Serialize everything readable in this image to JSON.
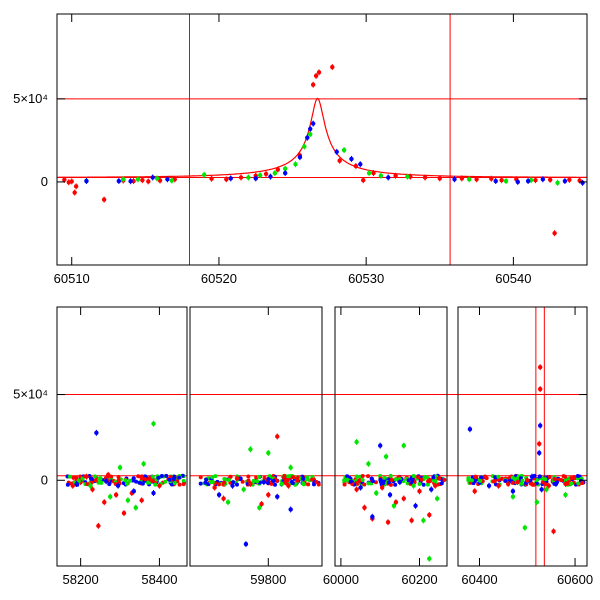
{
  "colors": {
    "red": "#ff0000",
    "green": "#00e600",
    "blue": "#0000ff",
    "axis": "#000000"
  },
  "chart_data": [
    {
      "type": "scatter",
      "title": "",
      "xlabel": "",
      "ylabel": "",
      "xlim": [
        60509,
        60545
      ],
      "ylim": [
        -47000,
        95000
      ],
      "xticks": [
        {
          "value": 60510,
          "label": "60510"
        },
        {
          "value": 60520,
          "label": "60520"
        },
        {
          "value": 60530,
          "label": "60530"
        },
        {
          "value": 60540,
          "label": "60540"
        }
      ],
      "yticks": [
        {
          "value": 0,
          "label": "0"
        },
        {
          "value": 47000,
          "label": "5×10⁴"
        }
      ],
      "hlines": [
        47000,
        2500
      ],
      "vlines": [
        60518,
        60535.7
      ],
      "model": {
        "t0": 60526.7,
        "u0": 0.055,
        "tE": 8.5,
        "base": 2500,
        "fs": 2600,
        "color": "red"
      },
      "series": [
        {
          "color": "red",
          "points": [
            [
              60509.5,
              1200
            ],
            [
              60509.8,
              -200
            ],
            [
              60510.0,
              300
            ],
            [
              60510.2,
              -6000
            ],
            [
              60510.3,
              -2500
            ],
            [
              60512.2,
              -10000
            ],
            [
              60513.5,
              800
            ],
            [
              60514.2,
              500
            ],
            [
              60514.8,
              1000
            ],
            [
              60515.2,
              300
            ],
            [
              60516.0,
              800
            ],
            [
              60517.0,
              1500
            ],
            [
              60519.5,
              1800
            ],
            [
              60520.5,
              1500
            ],
            [
              60521.5,
              2500
            ],
            [
              60522.5,
              3500
            ],
            [
              60523.2,
              4500
            ],
            [
              60524.0,
              7000
            ],
            [
              60525.5,
              15000
            ],
            [
              60526.4,
              55000
            ],
            [
              60526.6,
              60000
            ],
            [
              60526.8,
              62000
            ],
            [
              60527.7,
              65000
            ],
            [
              60528.2,
              12000
            ],
            [
              60529.3,
              9000
            ],
            [
              60529.8,
              1000
            ],
            [
              60530.5,
              5000
            ],
            [
              60532.0,
              3500
            ],
            [
              60533.0,
              3000
            ],
            [
              60534.0,
              2500
            ],
            [
              60535.0,
              2000
            ],
            [
              60536.5,
              2000
            ],
            [
              60537.5,
              1500
            ],
            [
              60538.5,
              1800
            ],
            [
              60539.2,
              1000
            ],
            [
              60540.2,
              1500
            ],
            [
              60541.5,
              1000
            ],
            [
              60542.5,
              1200
            ],
            [
              60542.8,
              -29000
            ],
            [
              60543.8,
              1200
            ],
            [
              60544.5,
              800
            ]
          ]
        },
        {
          "color": "green",
          "points": [
            [
              60511.0,
              600
            ],
            [
              60513.5,
              1500
            ],
            [
              60514.5,
              1500
            ],
            [
              60515.8,
              2000
            ],
            [
              60516.8,
              800
            ],
            [
              60519.0,
              4000
            ],
            [
              60522.0,
              2500
            ],
            [
              60522.8,
              3800
            ],
            [
              60523.8,
              5000
            ],
            [
              60524.5,
              7500
            ],
            [
              60525.2,
              10000
            ],
            [
              60525.8,
              20000
            ],
            [
              60526.2,
              27000
            ],
            [
              60528.5,
              18000
            ],
            [
              60530.2,
              5000
            ],
            [
              60531.0,
              3500
            ],
            [
              60532.8,
              3000
            ],
            [
              60537.0,
              1500
            ],
            [
              60539.5,
              500
            ],
            [
              60541.2,
              1000
            ],
            [
              60543.0,
              -500
            ]
          ]
        },
        {
          "color": "blue",
          "points": [
            [
              60511.0,
              500
            ],
            [
              60513.2,
              500
            ],
            [
              60514.0,
              400
            ],
            [
              60515.5,
              2500
            ],
            [
              60516.5,
              1500
            ],
            [
              60520.8,
              2000
            ],
            [
              60522.5,
              2000
            ],
            [
              60523.5,
              3000
            ],
            [
              60524.5,
              5000
            ],
            [
              60525.5,
              14000
            ],
            [
              60526.0,
              25000
            ],
            [
              60526.2,
              30000
            ],
            [
              60526.4,
              33000
            ],
            [
              60528.0,
              17000
            ],
            [
              60529.0,
              13000
            ],
            [
              60529.6,
              10000
            ],
            [
              60531.5,
              2500
            ],
            [
              60536.0,
              1500
            ],
            [
              60538.8,
              500
            ],
            [
              60540.3,
              0
            ],
            [
              60541.0,
              500
            ],
            [
              60542.0,
              1500
            ],
            [
              60543.5,
              500
            ],
            [
              60544.7,
              -500
            ]
          ]
        }
      ]
    },
    {
      "type": "scatter",
      "title": "",
      "xlabel": "",
      "ylabel": "",
      "ylim": [
        -47000,
        95000
      ],
      "segments": [
        {
          "xlim": [
            58140,
            58470
          ]
        },
        {
          "xlim": [
            59625,
            59920
          ]
        },
        {
          "xlim": [
            59985,
            60270
          ]
        },
        {
          "xlim": [
            60355,
            60625
          ]
        }
      ],
      "xticks": [
        {
          "value": 58200,
          "label": "58200"
        },
        {
          "value": 58400,
          "label": "58400"
        },
        {
          "value": 59800,
          "label": "59800"
        },
        {
          "value": 60000,
          "label": "60000"
        },
        {
          "value": 60200,
          "label": "60200"
        },
        {
          "value": 60400,
          "label": "60400"
        },
        {
          "value": 60600,
          "label": "60600"
        }
      ],
      "yticks": [
        {
          "value": 0,
          "label": "0"
        },
        {
          "value": 47000,
          "label": "5×10⁴"
        }
      ],
      "hlines": [
        47000,
        2500
      ],
      "vlines": [
        60518,
        60535.7
      ],
      "series": [
        {
          "color": "red",
          "points": [
            [
              58180,
              -3000
            ],
            [
              58200,
              -1000
            ],
            [
              58215,
              2000
            ],
            [
              58230,
              -5000
            ],
            [
              58245,
              -25000
            ],
            [
              58260,
              -12000
            ],
            [
              58270,
              3000
            ],
            [
              58290,
              -8000
            ],
            [
              58310,
              -18000
            ],
            [
              58330,
              -7000
            ],
            [
              58355,
              -11000
            ],
            [
              58375,
              1000
            ],
            [
              58400,
              -3000
            ],
            [
              59680,
              -4000
            ],
            [
              59700,
              -10000
            ],
            [
              59730,
              1000
            ],
            [
              59760,
              -2000
            ],
            [
              59785,
              -13000
            ],
            [
              59800,
              -8000
            ],
            [
              59820,
              24000
            ],
            [
              59845,
              -3000
            ],
            [
              60040,
              -5000
            ],
            [
              60060,
              -15000
            ],
            [
              60080,
              -21000
            ],
            [
              60105,
              -4000
            ],
            [
              60120,
              -23000
            ],
            [
              60140,
              -12000
            ],
            [
              60160,
              -10000
            ],
            [
              60180,
              -22000
            ],
            [
              60200,
              -6000
            ],
            [
              60225,
              -19000
            ],
            [
              60240,
              -3000
            ],
            [
              60390,
              -6000
            ],
            [
              60440,
              -3000
            ],
            [
              60460,
              -2000
            ],
            [
              60480,
              -1000
            ],
            [
              60500,
              0
            ],
            [
              60510,
              -2000
            ],
            [
              60525,
              20000
            ],
            [
              60527,
              50000
            ],
            [
              60527,
              62000
            ],
            [
              60545,
              -3000
            ],
            [
              60555,
              -28000
            ],
            [
              60580,
              -2000
            ]
          ]
        },
        {
          "color": "green",
          "points": [
            [
              58195,
              -500
            ],
            [
              58225,
              -3000
            ],
            [
              58250,
              1000
            ],
            [
              58275,
              -9000
            ],
            [
              58300,
              7000
            ],
            [
              58320,
              -11000
            ],
            [
              58340,
              -15000
            ],
            [
              58360,
              9000
            ],
            [
              58385,
              31000
            ],
            [
              59710,
              -12000
            ],
            [
              59745,
              -5000
            ],
            [
              59760,
              17000
            ],
            [
              59780,
              -15000
            ],
            [
              59800,
              15000
            ],
            [
              59830,
              -2000
            ],
            [
              59850,
              7000
            ],
            [
              60040,
              21000
            ],
            [
              60070,
              9000
            ],
            [
              60090,
              -7000
            ],
            [
              60115,
              13000
            ],
            [
              60135,
              -14000
            ],
            [
              60160,
              19000
            ],
            [
              60185,
              -3000
            ],
            [
              60210,
              -22000
            ],
            [
              60225,
              -43000
            ],
            [
              60245,
              -10000
            ],
            [
              60470,
              -9000
            ],
            [
              60495,
              -26000
            ],
            [
              60520,
              -12000
            ],
            [
              60540,
              -5000
            ],
            [
              60580,
              -8000
            ]
          ]
        },
        {
          "color": "blue",
          "points": [
            [
              58190,
              -2000
            ],
            [
              58240,
              26000
            ],
            [
              58265,
              -500
            ],
            [
              58295,
              -3000
            ],
            [
              58335,
              -6000
            ],
            [
              58385,
              -7000
            ],
            [
              59690,
              -8000
            ],
            [
              59720,
              -3000
            ],
            [
              59750,
              -35000
            ],
            [
              59790,
              -1000
            ],
            [
              59820,
              -9000
            ],
            [
              59850,
              -16000
            ],
            [
              60050,
              -4000
            ],
            [
              60080,
              -20000
            ],
            [
              60100,
              19000
            ],
            [
              60125,
              -8000
            ],
            [
              60150,
              -1000
            ],
            [
              60190,
              -14000
            ],
            [
              60230,
              -5000
            ],
            [
              60380,
              28000
            ],
            [
              60420,
              -3000
            ],
            [
              60470,
              -6000
            ],
            [
              60510,
              2000
            ],
            [
              60525,
              15000
            ],
            [
              60527,
              30000
            ],
            [
              60530,
              -5000
            ],
            [
              60560,
              -2000
            ]
          ]
        }
      ]
    }
  ]
}
